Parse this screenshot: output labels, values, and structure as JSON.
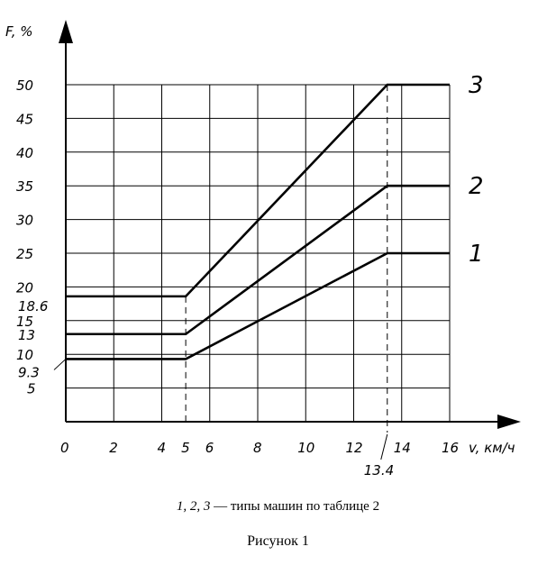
{
  "chart_data": {
    "type": "line",
    "y_axis_title": "F, %",
    "x_axis_title": "v, км/ч",
    "x_ticks": [
      "0",
      "2",
      "4",
      "5",
      "6",
      "8",
      "10",
      "12",
      "14",
      "16"
    ],
    "y_ticks": [
      "5",
      "10",
      "15",
      "20",
      "25",
      "30",
      "35",
      "40",
      "45",
      "50"
    ],
    "x_range": [
      0,
      16
    ],
    "y_range": [
      0,
      50
    ],
    "grid": true,
    "extra_y_labels": [
      {
        "value": 18.6,
        "label": "18.6"
      },
      {
        "value": 13,
        "label": "13"
      },
      {
        "value": 9.3,
        "label": "9.3"
      }
    ],
    "extra_x_labels": [
      {
        "value": 13.4,
        "label": "13.4"
      }
    ],
    "reference_lines_x": [
      5,
      13.4
    ],
    "series": [
      {
        "name": "1",
        "points": [
          [
            0,
            9.3
          ],
          [
            5,
            9.3
          ],
          [
            13.4,
            25
          ],
          [
            16,
            25
          ]
        ]
      },
      {
        "name": "2",
        "points": [
          [
            0,
            13
          ],
          [
            5,
            13
          ],
          [
            13.4,
            35
          ],
          [
            16,
            35
          ]
        ]
      },
      {
        "name": "3",
        "points": [
          [
            0,
            18.6
          ],
          [
            5,
            18.6
          ],
          [
            13.4,
            50
          ],
          [
            16,
            50
          ]
        ]
      }
    ]
  },
  "caption": {
    "numbers": "1, 2, 3",
    "text": " — типы машин по таблице 2",
    "figure": "Рисунок 1"
  }
}
